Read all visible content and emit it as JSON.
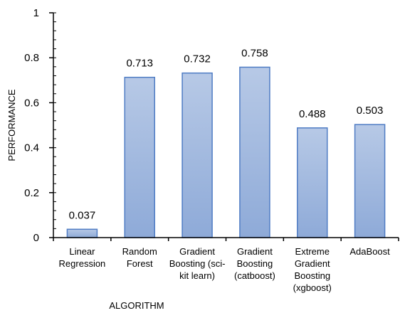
{
  "chart_data": {
    "type": "bar",
    "categories": [
      [
        "Linear",
        "Regression"
      ],
      [
        "Random",
        "Forest"
      ],
      [
        "Gradient",
        "Boosting (sci-",
        "kit learn)"
      ],
      [
        "Gradient",
        "Boosting",
        "(catboost)"
      ],
      [
        "Extreme",
        "Gradient",
        "Boosting",
        "(xgboost)"
      ],
      [
        "AdaBoost"
      ]
    ],
    "values": [
      0.037,
      0.713,
      0.732,
      0.758,
      0.488,
      0.503
    ],
    "data_labels": [
      "0.037",
      "0.713",
      "0.732",
      "0.758",
      "0.488",
      "0.503"
    ],
    "yticks": [
      0,
      0.2,
      0.4,
      0.6,
      0.8,
      1
    ],
    "ytick_labels": [
      "0",
      "0.2",
      "0.4",
      "0.6",
      "0.8",
      "1"
    ],
    "ylim": [
      0,
      1
    ],
    "xlabel": "ALGORITHM",
    "ylabel": "PERFORMANCE",
    "grid": false,
    "legend": "none",
    "colors": {
      "bar_top": "#b7c9e6",
      "bar_bottom": "#8eaad8",
      "bar_border": "#4f7cc4",
      "axis": "#000000"
    }
  }
}
